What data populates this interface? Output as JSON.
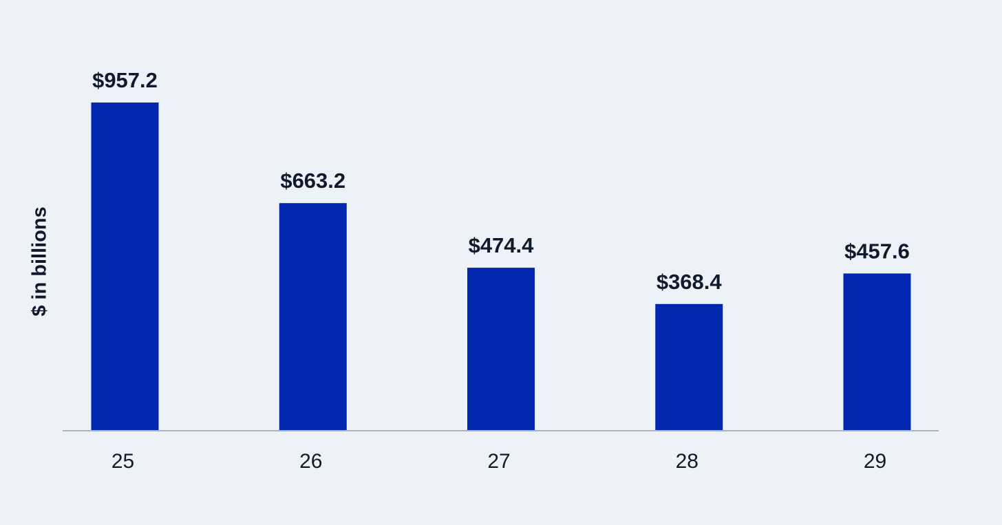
{
  "chart_data": {
    "type": "bar",
    "categories": [
      "25",
      "26",
      "27",
      "28",
      "29"
    ],
    "values": [
      957.2,
      663.2,
      474.4,
      368.4,
      457.6
    ],
    "data_labels": [
      "$957.2",
      "$663.2",
      "$474.4",
      "$368.4",
      "$457.6"
    ],
    "title": "",
    "xlabel": "",
    "ylabel": "$ in billions",
    "ylim": [
      0,
      957.2
    ],
    "grid": false,
    "legend": "none",
    "colors": {
      "bar": "#0328b0",
      "axis": "#a9b4c2",
      "text": "#0f1b2d",
      "background": "#edf2f9"
    }
  }
}
